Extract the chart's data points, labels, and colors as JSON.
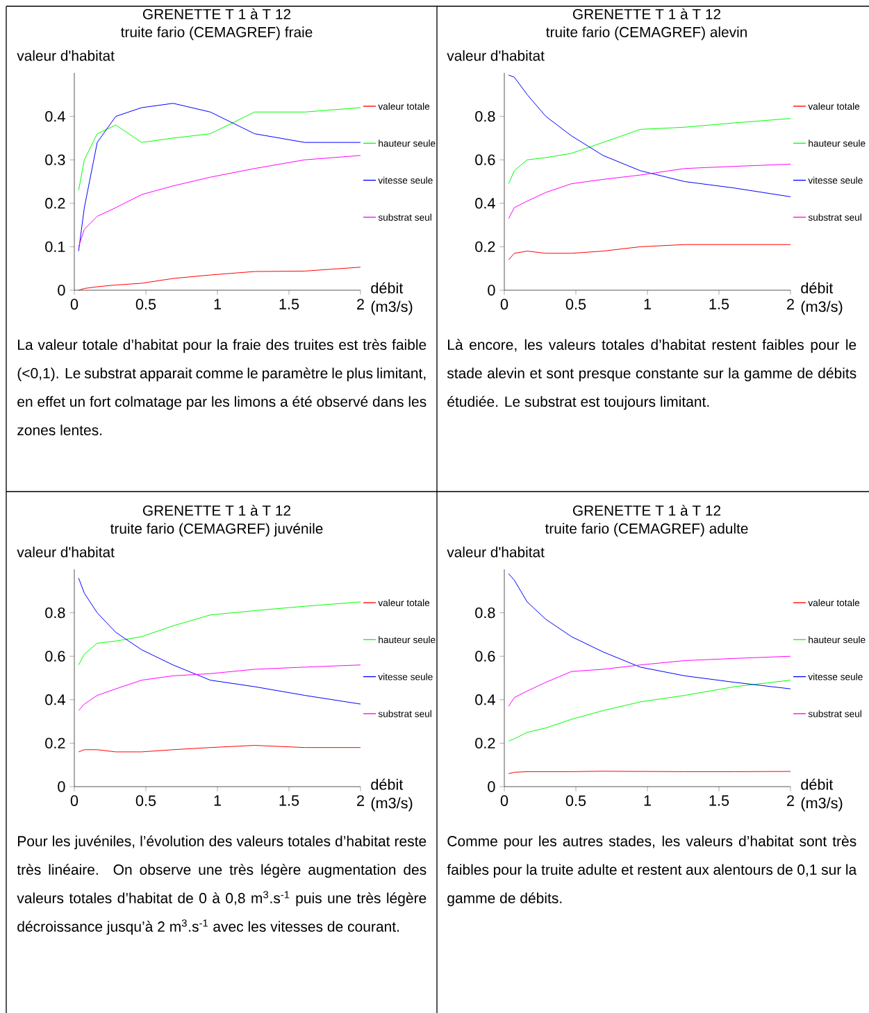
{
  "chart_data": [
    {
      "type": "line",
      "title": "GRENETTE T 1 à T 12",
      "subtitle": "truite fario (CEMAGREF) fraie",
      "ylabel": "valeur d'habitat",
      "xlabel": "débit (m3/s)",
      "legend": "right",
      "x": [
        0.03,
        0.07,
        0.16,
        0.29,
        0.47,
        0.69,
        0.95,
        1.26,
        1.61,
        2
      ],
      "series": [
        {
          "name": "valeur totale",
          "color": "#ff0000",
          "values": [
            0,
            0.004,
            0.008,
            0.012,
            0.016,
            0.027,
            0.035,
            0.043,
            0.044,
            0.053
          ]
        },
        {
          "name": "hauteur seule",
          "color": "#00ff00",
          "values": [
            0.23,
            0.3,
            0.36,
            0.38,
            0.34,
            0.35,
            0.36,
            0.41,
            0.41,
            0.42
          ]
        },
        {
          "name": "vitesse seule",
          "color": "#0000ff",
          "values": [
            0.09,
            0.19,
            0.34,
            0.4,
            0.42,
            0.43,
            0.41,
            0.36,
            0.34,
            0.34
          ]
        },
        {
          "name": "substrat seul",
          "color": "#ff00ff",
          "values": [
            0.1,
            0.14,
            0.17,
            0.19,
            0.22,
            0.24,
            0.26,
            0.28,
            0.3,
            0.31
          ]
        }
      ],
      "xlim": [
        0,
        2
      ],
      "ylim": [
        0,
        0.5
      ],
      "xticks": [
        0,
        0.5,
        1,
        1.5,
        2
      ],
      "yticks": [
        0,
        0.1,
        0.2,
        0.3,
        0.4
      ],
      "annotations": [
        "La valeur totale d’habitat pour la fraie des truites est très faible (<0,1). Le substrat apparait comme le paramètre le plus limitant, en effet un fort colmatage par les limons a été observé dans les zones lentes."
      ]
    },
    {
      "type": "line",
      "title": "GRENETTE T 1 à T 12",
      "subtitle": "truite fario (CEMAGREF) alevin",
      "ylabel": "valeur d'habitat",
      "xlabel": "débit (m3/s)",
      "legend": "right",
      "x": [
        0.03,
        0.07,
        0.16,
        0.29,
        0.47,
        0.69,
        0.95,
        1.26,
        1.61,
        2
      ],
      "series": [
        {
          "name": "valeur totale",
          "color": "#ff0000",
          "values": [
            0.14,
            0.17,
            0.18,
            0.17,
            0.17,
            0.18,
            0.2,
            0.21,
            0.21,
            0.21
          ]
        },
        {
          "name": "hauteur seule",
          "color": "#00ff00",
          "values": [
            0.49,
            0.55,
            0.6,
            0.61,
            0.63,
            0.68,
            0.74,
            0.75,
            0.77,
            0.79
          ]
        },
        {
          "name": "vitesse seule",
          "color": "#0000ff",
          "values": [
            0.99,
            0.98,
            0.9,
            0.8,
            0.71,
            0.62,
            0.55,
            0.5,
            0.47,
            0.43
          ]
        },
        {
          "name": "substrat seul",
          "color": "#ff00ff",
          "values": [
            0.33,
            0.38,
            0.41,
            0.45,
            0.49,
            0.51,
            0.53,
            0.56,
            0.57,
            0.58
          ]
        }
      ],
      "xlim": [
        0,
        2
      ],
      "ylim": [
        0,
        1
      ],
      "xticks": [
        0,
        0.5,
        1,
        1.5,
        2
      ],
      "yticks": [
        0,
        0.2,
        0.4,
        0.6,
        0.8
      ],
      "annotations": [
        "Là encore, les valeurs totales d’habitat restent faibles pour le stade alevin et sont presque constante sur la gamme de débits étudiée. Le substrat est toujours limitant."
      ]
    },
    {
      "type": "line",
      "title": "GRENETTE T 1 à T 12",
      "subtitle": "truite fario (CEMAGREF) juvénile",
      "ylabel": "valeur d'habitat",
      "xlabel": "débit (m3/s)",
      "legend": "right",
      "x": [
        0.03,
        0.07,
        0.16,
        0.29,
        0.47,
        0.69,
        0.95,
        1.26,
        1.61,
        2
      ],
      "series": [
        {
          "name": "valeur totale",
          "color": "#ff0000",
          "values": [
            0.16,
            0.17,
            0.17,
            0.16,
            0.16,
            0.17,
            0.18,
            0.19,
            0.18,
            0.18
          ]
        },
        {
          "name": "hauteur seule",
          "color": "#00ff00",
          "values": [
            0.56,
            0.61,
            0.66,
            0.67,
            0.69,
            0.74,
            0.79,
            0.81,
            0.83,
            0.85
          ]
        },
        {
          "name": "vitesse seule",
          "color": "#0000ff",
          "values": [
            0.96,
            0.89,
            0.8,
            0.71,
            0.63,
            0.56,
            0.49,
            0.46,
            0.42,
            0.38
          ]
        },
        {
          "name": "substrat seul",
          "color": "#ff00ff",
          "values": [
            0.35,
            0.38,
            0.42,
            0.45,
            0.49,
            0.51,
            0.52,
            0.54,
            0.55,
            0.56
          ]
        }
      ],
      "xlim": [
        0,
        2
      ],
      "ylim": [
        0,
        1
      ],
      "xticks": [
        0,
        0.5,
        1,
        1.5,
        2
      ],
      "yticks": [
        0,
        0.2,
        0.4,
        0.6,
        0.8
      ],
      "annotations": [
        "Pour les juvéniles, l’évolution des valeurs totales d’habitat reste très linéaire. On observe une très légère augmentation des valeurs totales d’habitat de 0 à 0,8 m$^{3}$.s$^{-1}$ puis une très légère décroissance jusqu’à 2 m$^{3}$.s$^{-1}$ avec les vitesses de courant."
      ]
    },
    {
      "type": "line",
      "title": "GRENETTE T 1 à T 12",
      "subtitle": "truite fario (CEMAGREF) adulte",
      "ylabel": "valeur d'habitat",
      "xlabel": "débit (m3/s)",
      "legend": "right",
      "x": [
        0.03,
        0.07,
        0.16,
        0.29,
        0.47,
        0.69,
        0.95,
        1.26,
        1.61,
        2
      ],
      "series": [
        {
          "name": "valeur totale",
          "color": "#ff0000",
          "values": [
            0.06,
            0.066,
            0.069,
            0.069,
            0.069,
            0.071,
            0.07,
            0.069,
            0.069,
            0.07
          ]
        },
        {
          "name": "hauteur seule",
          "color": "#00ff00",
          "values": [
            0.21,
            0.22,
            0.25,
            0.27,
            0.31,
            0.35,
            0.39,
            0.42,
            0.46,
            0.49
          ]
        },
        {
          "name": "vitesse seule",
          "color": "#0000ff",
          "values": [
            0.98,
            0.95,
            0.85,
            0.77,
            0.69,
            0.62,
            0.55,
            0.51,
            0.48,
            0.45
          ]
        },
        {
          "name": "substrat seul",
          "color": "#ff00ff",
          "values": [
            0.37,
            0.41,
            0.44,
            0.48,
            0.53,
            0.54,
            0.56,
            0.58,
            0.59,
            0.6
          ]
        }
      ],
      "xlim": [
        0,
        2
      ],
      "ylim": [
        0,
        1
      ],
      "xticks": [
        0,
        0.5,
        1,
        1.5,
        2
      ],
      "yticks": [
        0,
        0.2,
        0.4,
        0.6,
        0.8
      ],
      "annotations": [
        "Comme pour les autres stades, les valeurs d’habitat sont très faibles pour la truite adulte et restent aux alentours de 0,1 sur la gamme de débits."
      ]
    }
  ]
}
